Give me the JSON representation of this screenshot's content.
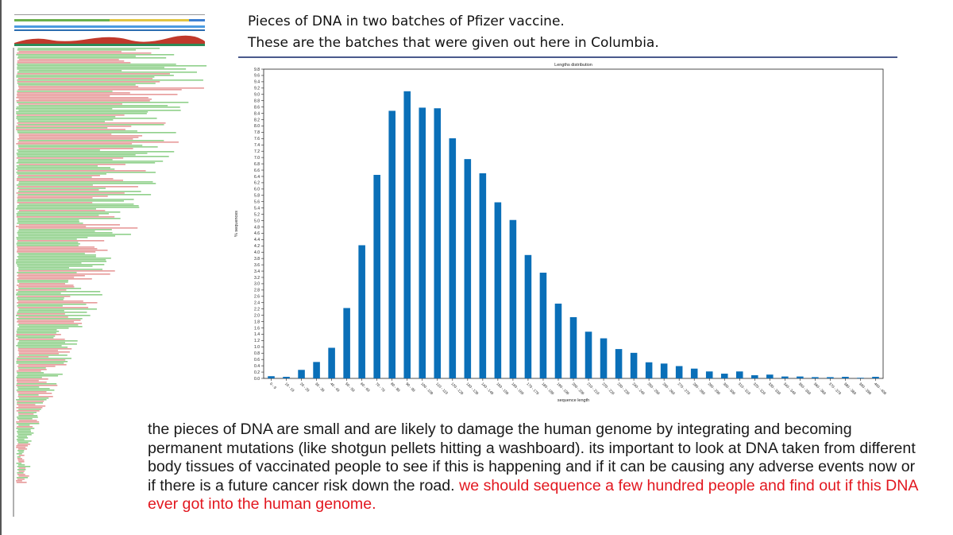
{
  "slide": {
    "title_line1": "Pieces of DNA in two batches of Pfizer vaccine.",
    "title_line2": "These are the batches that were given out here in Columbia.",
    "body_black": "the pieces of DNA are small and are likely to damage the human genome by integrating and becoming permanent mutations (like shotgun pellets hitting a washboard).  its important to look at DNA taken from different body tissues of vaccinated people to see if this is happening and if it can be causing any adverse events now or if there is a future cancer risk down the road. ",
    "body_red": "we should sequence a few hundred people and find out if this DNA ever got into the human genome."
  },
  "colors": {
    "bar": "#0a6fb8",
    "alignment_green": "#8fd08a",
    "alignment_pink": "#e79a9a",
    "body_red": "#e2171f",
    "title_rule": "#4a5a8c"
  },
  "chart_data": {
    "type": "bar",
    "title": "Lengths distribution",
    "xlabel": "sequence length",
    "ylabel": "% sequences",
    "ylim": [
      0,
      9.8
    ],
    "ytick_step": 0.2,
    "grid": false,
    "categories": [
      "0 - 9",
      "10 - 19",
      "20 - 29",
      "30 - 39",
      "40 - 49",
      "50 - 59",
      "60 - 69",
      "70 - 79",
      "80 - 89",
      "90 - 99",
      "100 - 109",
      "110 - 119",
      "120 - 129",
      "130 - 139",
      "140 - 149",
      "150 - 159",
      "160 - 169",
      "170 - 179",
      "180 - 189",
      "190 - 199",
      "200 - 209",
      "210 - 219",
      "220 - 229",
      "230 - 239",
      "240 - 249",
      "250 - 259",
      "260 - 269",
      "270 - 279",
      "280 - 289",
      "290 - 299",
      "300 - 309",
      "310 - 319",
      "320 - 329",
      "330 - 339",
      "340 - 349",
      "350 - 359",
      "360 - 369",
      "370 - 379",
      "380 - 389",
      "390 - 399",
      "400 - 409"
    ],
    "values": [
      0.07,
      0.05,
      0.27,
      0.52,
      0.97,
      2.23,
      4.22,
      6.45,
      8.48,
      9.1,
      8.58,
      8.56,
      7.61,
      6.95,
      6.5,
      5.58,
      5.02,
      3.91,
      3.35,
      2.37,
      1.94,
      1.48,
      1.27,
      0.93,
      0.81,
      0.51,
      0.47,
      0.39,
      0.31,
      0.22,
      0.15,
      0.22,
      0.1,
      0.12,
      0.06,
      0.06,
      0.04,
      0.04,
      0.05,
      0.02,
      0.05
    ]
  }
}
